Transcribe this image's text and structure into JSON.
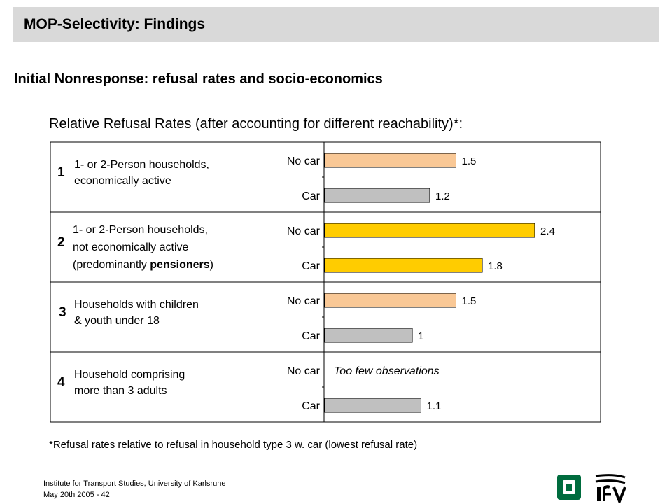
{
  "header": {
    "title": "MOP-Selectivity:  Findings",
    "subtitle": "Initial Nonresponse: refusal rates and socio-economics",
    "chart_caption": "Relative Refusal Rates (after accounting for different reachability)*:"
  },
  "chart_data": {
    "type": "bar",
    "orientation": "horizontal",
    "xlim": [
      0,
      2.6
    ],
    "groups": [
      {
        "number": "1",
        "label_lines": [
          "1- or 2-Person households,",
          "economically active"
        ],
        "bars": [
          {
            "category": "No car",
            "value": 1.5,
            "label": "1.5",
            "color": "#f9c896"
          },
          {
            "category": "Car",
            "value": 1.2,
            "label": "1.2",
            "color": "#c0c0c0"
          }
        ]
      },
      {
        "number": "2",
        "label_lines": [
          "1- or 2-Person households,",
          "not economically active",
          "(predominantly pensioners)"
        ],
        "bars": [
          {
            "category": "No car",
            "value": 2.4,
            "label": "2.4",
            "color": "#ffcc00"
          },
          {
            "category": "Car",
            "value": 1.8,
            "label": "1.8",
            "color": "#ffcc00"
          }
        ]
      },
      {
        "number": "3",
        "label_lines": [
          "Households with children",
          "& youth under 18"
        ],
        "bars": [
          {
            "category": "No car",
            "value": 1.5,
            "label": "1.5",
            "color": "#f9c896"
          },
          {
            "category": "Car",
            "value": 1.0,
            "label": "1",
            "color": "#c0c0c0"
          }
        ]
      },
      {
        "number": "4",
        "label_lines": [
          "Household comprising",
          "more than 3 adults"
        ],
        "bars": [
          {
            "category": "No car",
            "value": null,
            "label": "",
            "note": "Too few observations",
            "color": "#f9c896"
          },
          {
            "category": "Car",
            "value": 1.1,
            "label": "1.1",
            "color": "#c0c0c0"
          }
        ]
      }
    ]
  },
  "footnote": "*Refusal rates relative to refusal in household type 3 w. car (lowest refusal rate)",
  "footer": {
    "institute": "Institute for Transport Studies, University of Karlsruhe",
    "date_page": "May 20th 2005 - 42"
  }
}
